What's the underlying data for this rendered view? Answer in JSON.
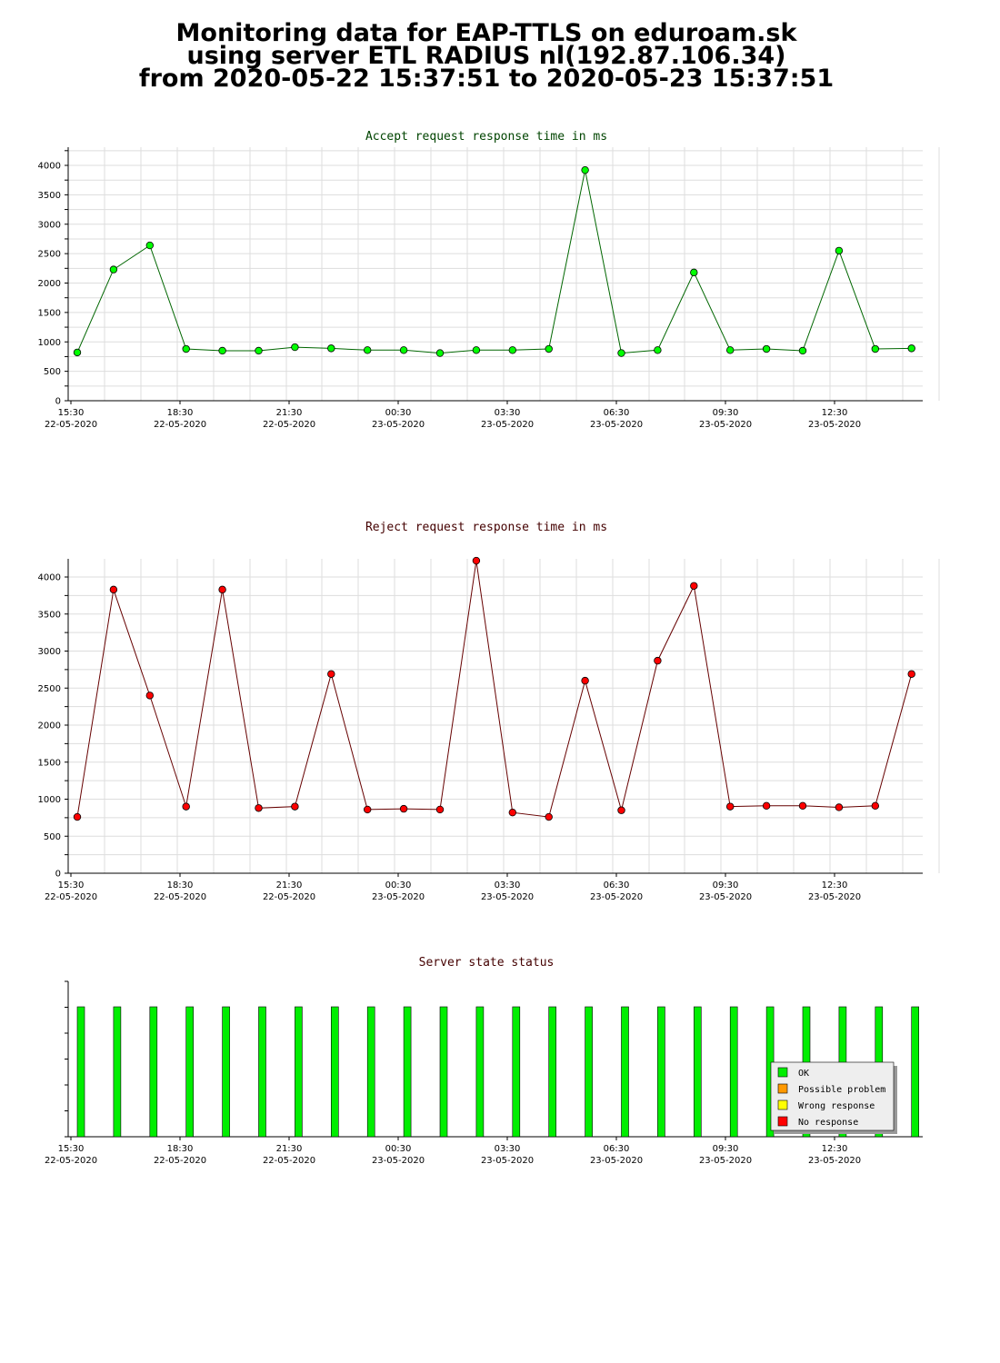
{
  "header": {
    "line1": "Monitoring data for EAP-TTLS on eduroam.sk",
    "line2": "using server ETL RADIUS nl(192.87.106.34)",
    "line3": "from 2020-05-22 15:37:51 to 2020-05-23 15:37:51"
  },
  "colors": {
    "accept_line": "#006600",
    "accept_marker": "#00ff00",
    "reject_line": "#660000",
    "reject_marker": "#ff0000",
    "title_accept": "#004400",
    "title_reject": "#440000",
    "grid": "#dddddd",
    "status_ok": "#00ee00",
    "status_problem": "#ff9900",
    "status_wrong": "#ffff00",
    "status_none": "#ff0000"
  },
  "x_axis": {
    "tick_times": [
      "15:30",
      "18:30",
      "21:30",
      "00:30",
      "03:30",
      "06:30",
      "09:30",
      "12:30"
    ],
    "tick_dates": [
      "22-05-2020",
      "22-05-2020",
      "22-05-2020",
      "23-05-2020",
      "23-05-2020",
      "23-05-2020",
      "23-05-2020",
      "23-05-2020"
    ]
  },
  "chart_data": [
    {
      "type": "line",
      "title": "Accept request response time in ms",
      "x": [
        "15:37",
        "16:37",
        "17:37",
        "18:37",
        "19:37",
        "20:37",
        "21:37",
        "22:37",
        "23:37",
        "00:37",
        "01:37",
        "02:37",
        "03:37",
        "04:37",
        "05:37",
        "06:37",
        "07:37",
        "08:37",
        "09:37",
        "10:37",
        "11:37",
        "12:37",
        "13:37",
        "14:37"
      ],
      "values": [
        820,
        2230,
        2640,
        880,
        850,
        850,
        910,
        890,
        860,
        860,
        810,
        860,
        860,
        880,
        3920,
        810,
        860,
        2180,
        860,
        880,
        850,
        2550,
        880,
        890
      ],
      "ylim": [
        0,
        4000
      ],
      "yticks": [
        0,
        500,
        1000,
        1500,
        2000,
        2500,
        3000,
        3500,
        4000
      ],
      "grid": true
    },
    {
      "type": "line",
      "title": "Reject request response time in ms",
      "x": [
        "15:37",
        "16:37",
        "17:37",
        "18:37",
        "19:37",
        "20:37",
        "21:37",
        "22:37",
        "23:37",
        "00:37",
        "01:37",
        "02:37",
        "03:37",
        "04:37",
        "05:37",
        "06:37",
        "07:37",
        "08:37",
        "09:37",
        "10:37",
        "11:37",
        "12:37",
        "13:37",
        "14:37"
      ],
      "values": [
        760,
        3830,
        2400,
        900,
        3830,
        880,
        900,
        2690,
        860,
        870,
        860,
        4220,
        820,
        760,
        2600,
        850,
        2870,
        3880,
        900,
        910,
        910,
        890,
        910,
        2690
      ],
      "ylim": [
        0,
        4000
      ],
      "yticks": [
        0,
        500,
        1000,
        1500,
        2000,
        2500,
        3000,
        3500,
        4000
      ],
      "grid": true
    },
    {
      "type": "bar",
      "title": "Server state status",
      "x": [
        "15:37",
        "16:37",
        "17:37",
        "18:37",
        "19:37",
        "20:37",
        "21:37",
        "22:37",
        "23:37",
        "00:37",
        "01:37",
        "02:37",
        "03:37",
        "04:37",
        "05:37",
        "06:37",
        "07:37",
        "08:37",
        "09:37",
        "10:37",
        "11:37",
        "12:37",
        "13:37",
        "14:37"
      ],
      "values": [
        1,
        1,
        1,
        1,
        1,
        1,
        1,
        1,
        1,
        1,
        1,
        1,
        1,
        1,
        1,
        1,
        1,
        1,
        1,
        1,
        1,
        1,
        1,
        1
      ],
      "status": [
        "OK",
        "OK",
        "OK",
        "OK",
        "OK",
        "OK",
        "OK",
        "OK",
        "OK",
        "OK",
        "OK",
        "OK",
        "OK",
        "OK",
        "OK",
        "OK",
        "OK",
        "OK",
        "OK",
        "OK",
        "OK",
        "OK",
        "OK",
        "OK"
      ],
      "legend": [
        "OK",
        "Possible problem",
        "Wrong response",
        "No response"
      ],
      "legend_colors": [
        "#00ee00",
        "#ff9900",
        "#ffff00",
        "#ff0000"
      ],
      "legend_position": "bottom-right"
    }
  ]
}
